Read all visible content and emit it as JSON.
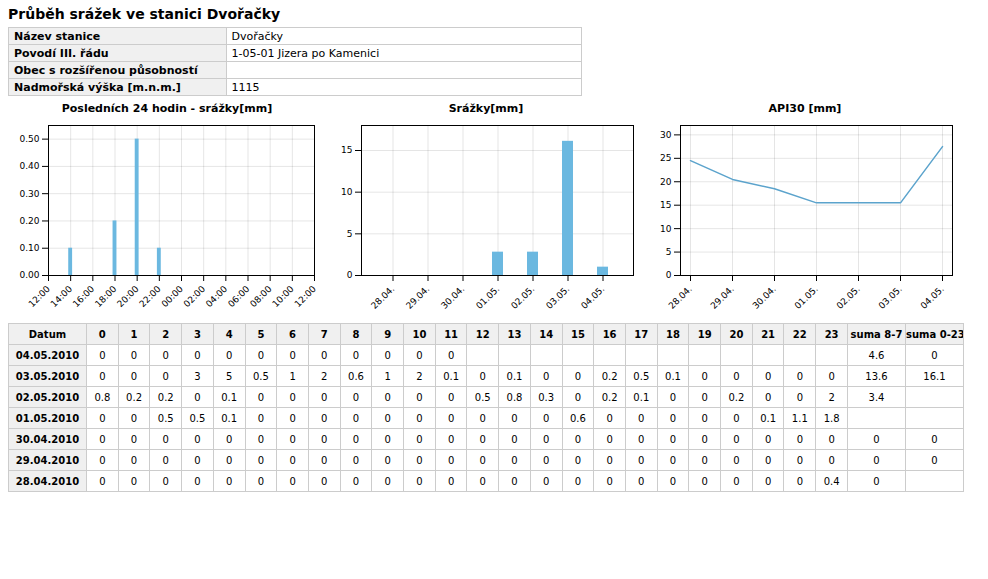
{
  "title": "Průběh srážek ve stanici Dvořačky",
  "info": {
    "labels": [
      "Název stanice",
      "Povodí III. řádu",
      "Obec s rozšířenou působností",
      "Nadmořská výška [m.n.m.]"
    ],
    "values": [
      "Dvořačky",
      "1-05-01 Jizera po Kamenici",
      null,
      "1115"
    ]
  },
  "chart_data": [
    {
      "type": "bar",
      "title": "Posledních 24 hodin - srážky[mm]",
      "x": [
        2,
        6,
        8,
        10
      ],
      "values": [
        0.1,
        0.2,
        0.5,
        0.1
      ],
      "color": "#6bb8e0",
      "xlim": [
        0,
        24
      ],
      "xticks": [
        {
          "value": 0,
          "label": "12:00"
        },
        {
          "value": 2,
          "label": "14:00"
        },
        {
          "value": 4,
          "label": "16:00"
        },
        {
          "value": 6,
          "label": "18:00"
        },
        {
          "value": 8,
          "label": "20:00"
        },
        {
          "value": 10,
          "label": "22:00"
        },
        {
          "value": 12,
          "label": "00:00"
        },
        {
          "value": 14,
          "label": "02:00"
        },
        {
          "value": 16,
          "label": "04:00"
        },
        {
          "value": 18,
          "label": "06:00"
        },
        {
          "value": 20,
          "label": "08:00"
        },
        {
          "value": 22,
          "label": "10:00"
        },
        {
          "value": 24,
          "label": "12:00"
        }
      ],
      "ylim": [
        0,
        0.55
      ],
      "yticks": [
        {
          "value": 0.0,
          "label": "0.00"
        },
        {
          "value": 0.1,
          "label": "0.10"
        },
        {
          "value": 0.2,
          "label": "0.20"
        },
        {
          "value": 0.3,
          "label": "0.30"
        },
        {
          "value": 0.4,
          "label": "0.40"
        },
        {
          "value": 0.5,
          "label": "0.50"
        }
      ],
      "grid": true
    },
    {
      "type": "bar",
      "title": "Srážky[mm]",
      "categories": [
        "28.04.",
        "29.04.",
        "30.04.",
        "01.05.",
        "02.05.",
        "03.05.",
        "04.05."
      ],
      "values": [
        0,
        0,
        0,
        2.8,
        2.8,
        16.1,
        1.0
      ],
      "color": "#6bb8e0",
      "ylim": [
        0,
        18
      ],
      "yticks": [
        0,
        5,
        10,
        15
      ],
      "grid": true
    },
    {
      "type": "line",
      "title": "API30 [mm]",
      "categories": [
        "28.04.",
        "29.04.",
        "30.04.",
        "01.05.",
        "02.05.",
        "03.05.",
        "04.05."
      ],
      "values": [
        24.5,
        20.5,
        18.5,
        15.5,
        15.5,
        15.5,
        27.5
      ],
      "color": "#5ba3cc",
      "ylim": [
        0,
        32
      ],
      "yticks": [
        0,
        5,
        10,
        15,
        20,
        25,
        30
      ],
      "grid": true
    }
  ],
  "table": {
    "header": [
      "Datum",
      "0",
      "1",
      "2",
      "3",
      "4",
      "5",
      "6",
      "7",
      "8",
      "9",
      "10",
      "11",
      "12",
      "13",
      "14",
      "15",
      "16",
      "17",
      "18",
      "19",
      "20",
      "21",
      "22",
      "23",
      "suma 8-7",
      "suma 0-23"
    ],
    "rows": [
      [
        "04.05.2010",
        "0",
        "0",
        "0",
        "0",
        "0",
        "0",
        "0",
        "0",
        "0",
        "0",
        "0",
        "0",
        null,
        null,
        null,
        null,
        null,
        null,
        null,
        null,
        null,
        null,
        null,
        null,
        "4.6",
        "0"
      ],
      [
        "03.05.2010",
        "0",
        "0",
        "0",
        "3",
        "5",
        "0.5",
        "1",
        "2",
        "0.6",
        "1",
        "2",
        "0.1",
        "0",
        "0.1",
        "0",
        "0",
        "0.2",
        "0.5",
        "0.1",
        "0",
        "0",
        "0",
        "0",
        "0",
        "13.6",
        "16.1"
      ],
      [
        "02.05.2010",
        "0.8",
        "0.2",
        "0.2",
        "0",
        "0.1",
        "0",
        "0",
        "0",
        "0",
        "0",
        "0",
        "0",
        "0.5",
        "0.8",
        "0.3",
        "0",
        "0.2",
        "0.1",
        "0",
        "0",
        "0.2",
        "0",
        "0",
        "2",
        "3.4",
        null
      ],
      [
        "01.05.2010",
        "0",
        "0",
        "0.5",
        "0.5",
        "0.1",
        "0",
        "0",
        "0",
        "0",
        "0",
        "0",
        "0",
        "0",
        "0",
        "0",
        "0.6",
        "0",
        "0",
        "0",
        "0",
        "0",
        "0.1",
        "1.1",
        "1.8",
        null,
        null
      ],
      [
        "30.04.2010",
        "0",
        "0",
        "0",
        "0",
        "0",
        "0",
        "0",
        "0",
        "0",
        "0",
        "0",
        "0",
        "0",
        "0",
        "0",
        "0",
        "0",
        "0",
        "0",
        "0",
        "0",
        "0",
        "0",
        "0",
        "0",
        "0"
      ],
      [
        "29.04.2010",
        "0",
        "0",
        "0",
        "0",
        "0",
        "0",
        "0",
        "0",
        "0",
        "0",
        "0",
        "0",
        "0",
        "0",
        "0",
        "0",
        "0",
        "0",
        "0",
        "0",
        "0",
        "0",
        "0",
        "0",
        "0",
        "0"
      ],
      [
        "28.04.2010",
        "0",
        "0",
        "0",
        "0",
        "0",
        "0",
        "0",
        "0",
        "0",
        "0",
        "0",
        "0",
        "0",
        "0",
        "0",
        "0",
        "0",
        "0",
        "0",
        "0",
        "0",
        "0",
        "0",
        "0.4",
        "0",
        null
      ]
    ]
  }
}
